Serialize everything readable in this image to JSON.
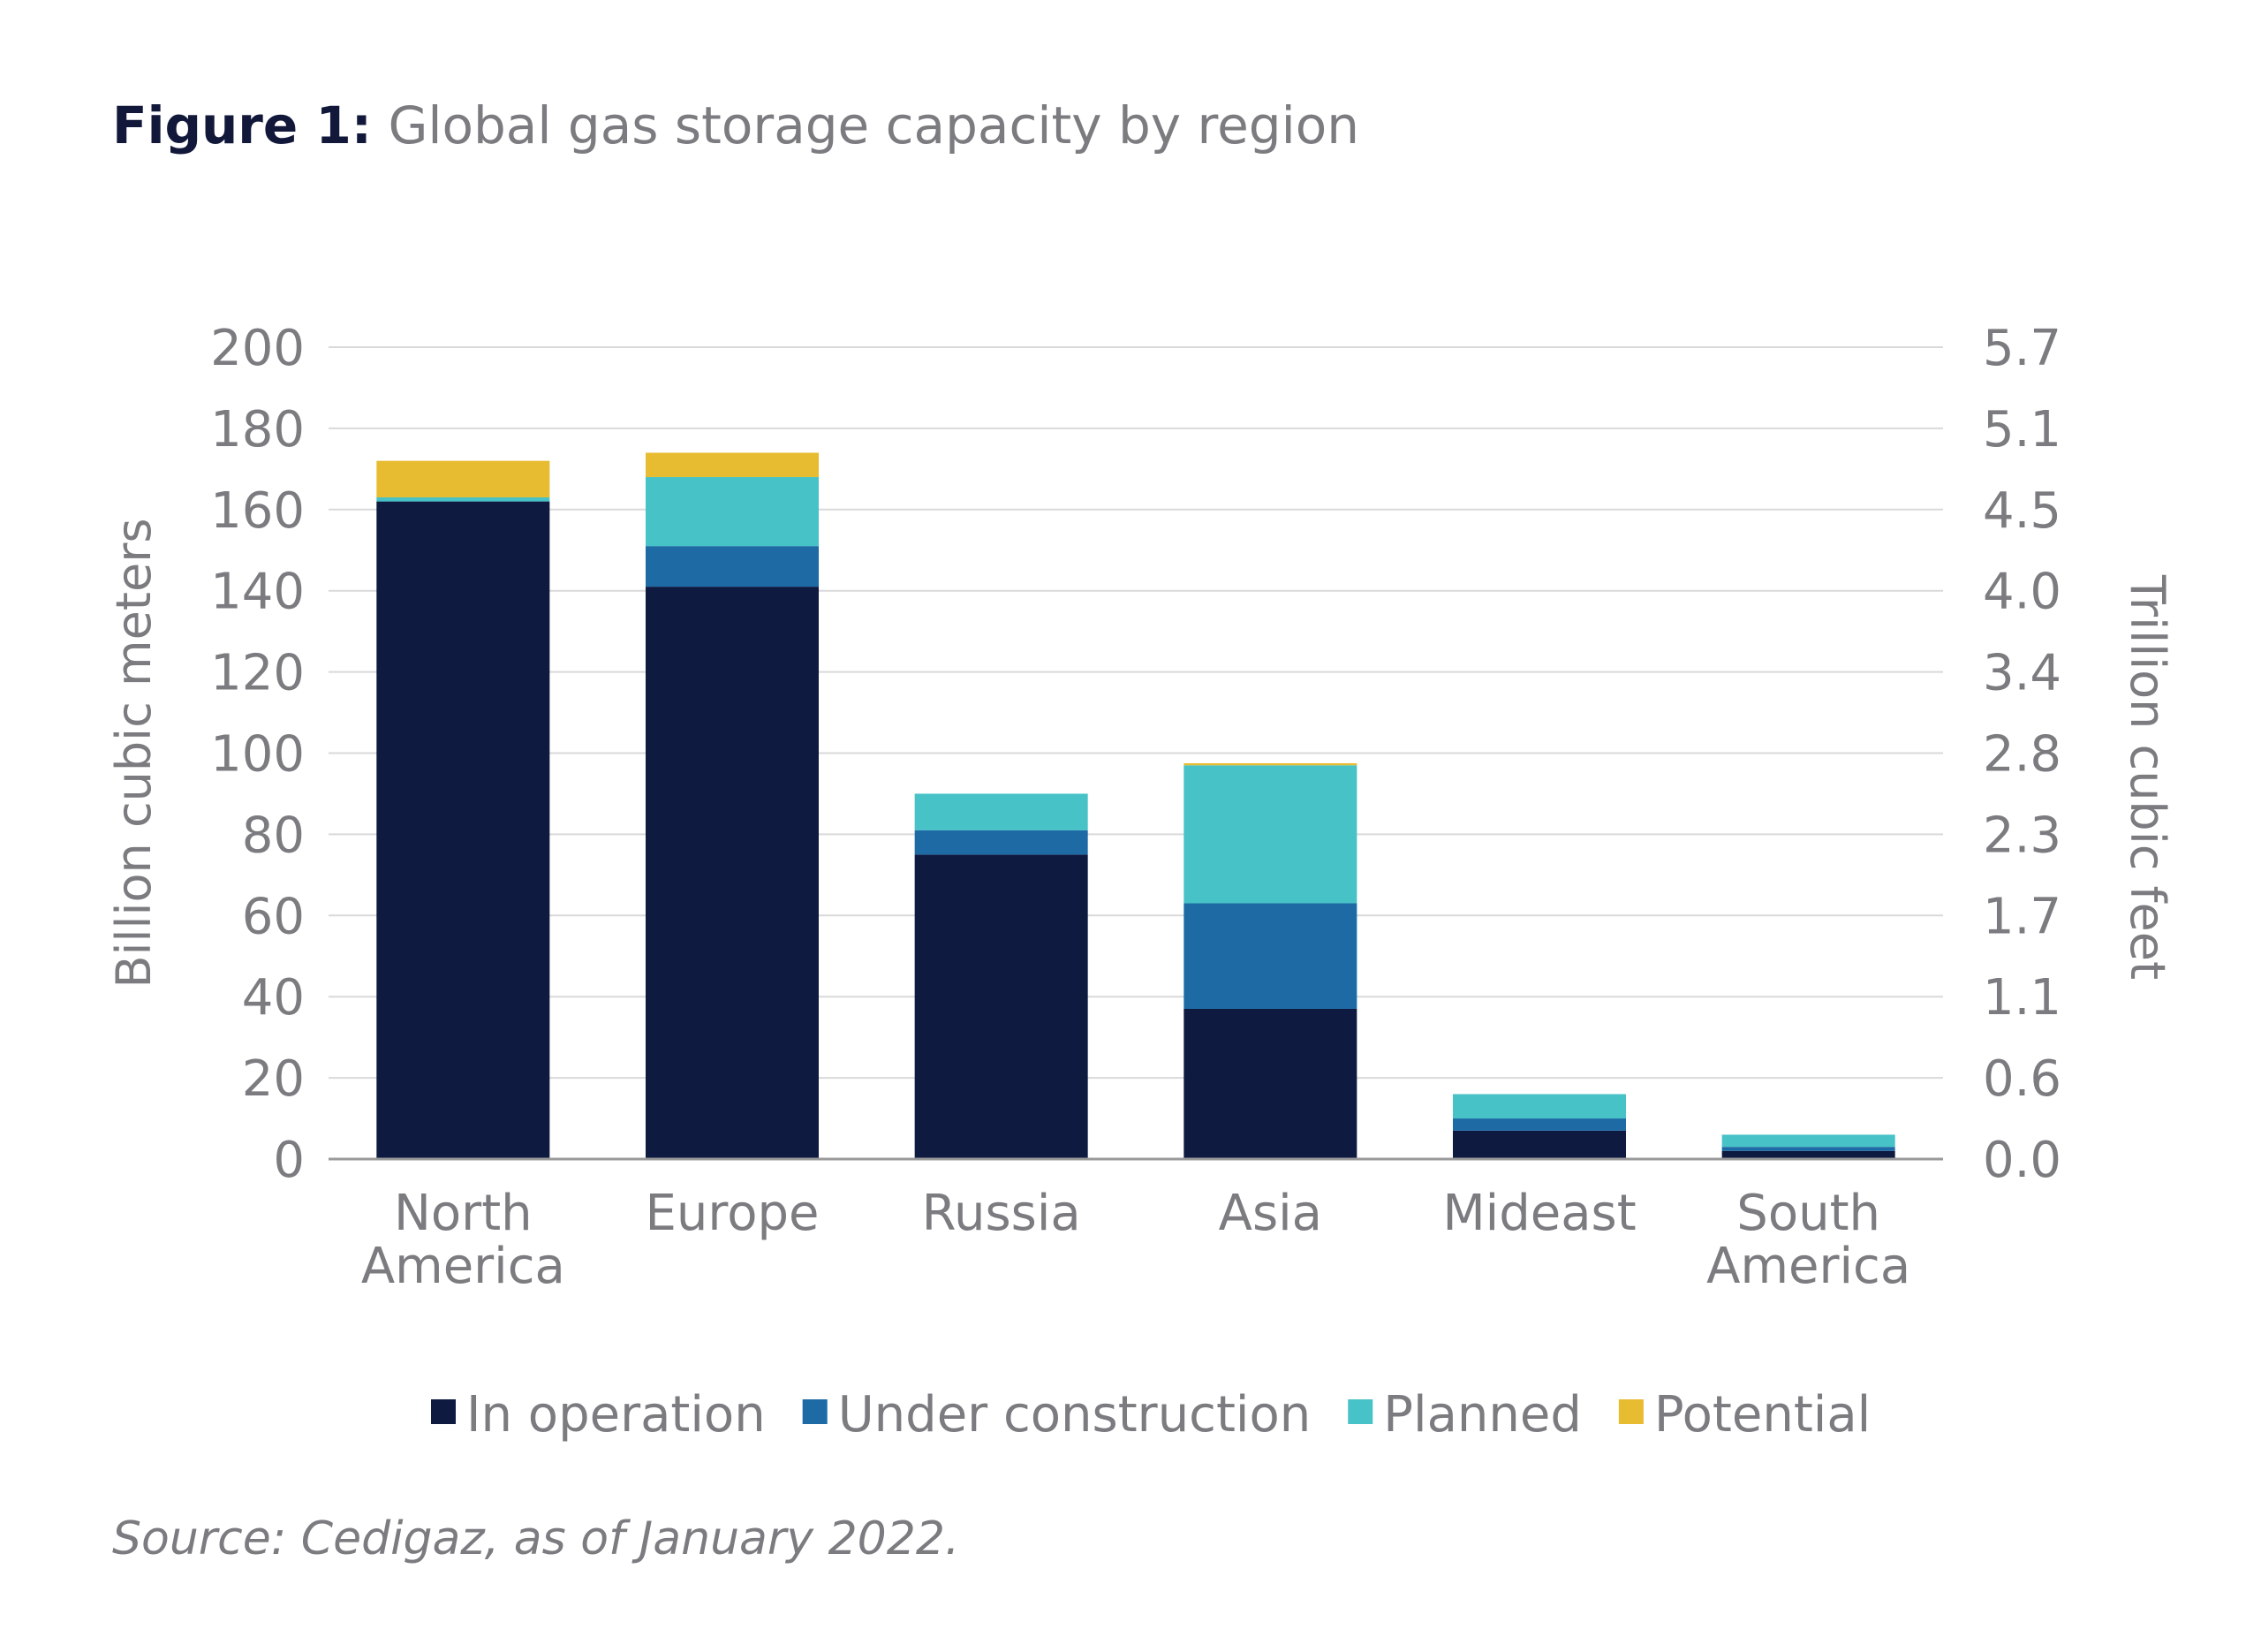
{
  "header": {
    "figure_label": "Figure 1:",
    "title": "Global gas storage capacity by region"
  },
  "footer": {
    "source": "Source: Cedigaz, as of January 2022."
  },
  "chart_data": {
    "type": "bar",
    "stacked": true,
    "categories": [
      [
        "North",
        "America"
      ],
      [
        "Europe"
      ],
      [
        "Russia"
      ],
      [
        "Asia"
      ],
      [
        "Mideast"
      ],
      [
        "South",
        "America"
      ]
    ],
    "series": [
      {
        "name": "In operation",
        "color": "#0e1a40",
        "values": [
          162,
          141,
          75,
          37,
          7,
          2
        ]
      },
      {
        "name": "Under construction",
        "color": "#1d6aa5",
        "values": [
          0,
          10,
          6,
          26,
          3,
          1
        ]
      },
      {
        "name": "Planned",
        "color": "#47c2c7",
        "values": [
          1,
          17,
          9,
          34,
          6,
          3
        ]
      },
      {
        "name": "Potential",
        "color": "#e8bc31",
        "values": [
          9,
          6,
          0,
          0.5,
          0,
          0
        ]
      }
    ],
    "ylabel": "Billion cubic meters",
    "y2label": "Trillion cubic feet",
    "ylim": [
      0,
      200
    ],
    "yticks": [
      0,
      20,
      40,
      60,
      80,
      100,
      120,
      140,
      160,
      180,
      200
    ],
    "y2ticks": [
      "0.0",
      "0.6",
      "1.1",
      "1.7",
      "2.3",
      "2.8",
      "3.4",
      "4.0",
      "4.5",
      "5.1",
      "5.7"
    ],
    "grid": true,
    "legend_position": "bottom"
  }
}
